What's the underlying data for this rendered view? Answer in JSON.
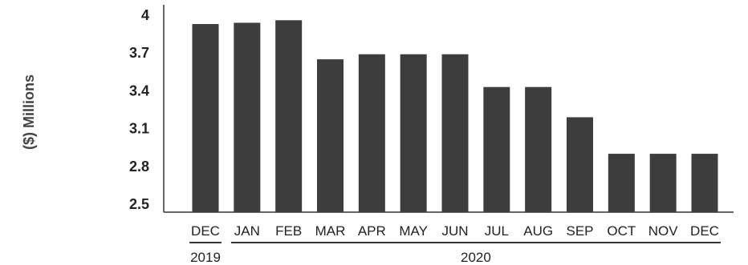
{
  "chart_data": {
    "type": "bar",
    "title": "",
    "xlabel": "",
    "ylabel": "($) Millions",
    "ylim": [
      2.5,
      4
    ],
    "yticks": [
      "4",
      "3.7",
      "3.4",
      "3.1",
      "2.8",
      "2.5"
    ],
    "categories": [
      "DEC",
      "JAN",
      "FEB",
      "MAR",
      "APR",
      "MAY",
      "JUN",
      "JUL",
      "AUG",
      "SEP",
      "OCT",
      "NOV",
      "DEC"
    ],
    "values": [
      3.93,
      3.94,
      3.96,
      3.65,
      3.69,
      3.69,
      3.69,
      3.43,
      3.43,
      3.19,
      2.9,
      2.9,
      2.9
    ],
    "year_groups": [
      {
        "label": "2019",
        "count": 1
      },
      {
        "label": "2020",
        "count": 12
      }
    ],
    "bar_color": "#3d3d3d",
    "grid": false,
    "legend": "none"
  }
}
